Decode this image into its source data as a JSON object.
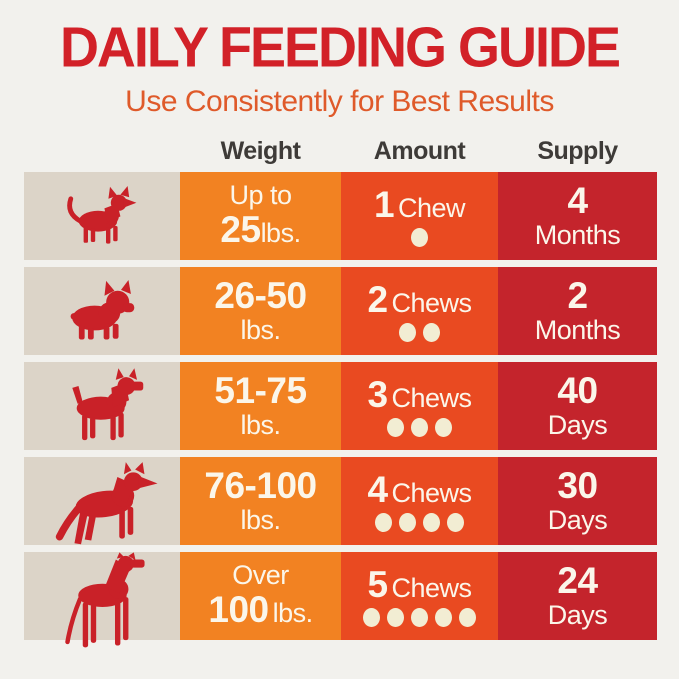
{
  "page": {
    "title": "DAILY FEEDING GUIDE",
    "subtitle": "Use Consistently for Best Results"
  },
  "table": {
    "headers": [
      "Weight",
      "Amount",
      "Supply"
    ],
    "rows": [
      {
        "dog": "chihuahua-icon",
        "weight": {
          "l1_strong": "",
          "l1_normal": "Up to",
          "l2_strong": "25",
          "l2_normal": "lbs."
        },
        "amount": {
          "number": "1",
          "unit": "Chew",
          "count": 1
        },
        "supply": {
          "number": "4",
          "unit": "Months"
        }
      },
      {
        "dog": "french-bulldog-icon",
        "weight": {
          "l1_strong": "26-50",
          "l1_normal": "",
          "l2_strong": "",
          "l2_normal": "lbs."
        },
        "amount": {
          "number": "2",
          "unit": "Chews",
          "count": 2
        },
        "supply": {
          "number": "2",
          "unit": "Months"
        }
      },
      {
        "dog": "boxer-icon",
        "weight": {
          "l1_strong": "51-75",
          "l1_normal": "",
          "l2_strong": "",
          "l2_normal": "lbs."
        },
        "amount": {
          "number": "3",
          "unit": "Chews",
          "count": 3
        },
        "supply": {
          "number": "40",
          "unit": "Days"
        }
      },
      {
        "dog": "german-shepherd-icon",
        "weight": {
          "l1_strong": "76-100",
          "l1_normal": "",
          "l2_strong": "",
          "l2_normal": "lbs."
        },
        "amount": {
          "number": "4",
          "unit": "Chews",
          "count": 4
        },
        "supply": {
          "number": "30",
          "unit": "Days"
        }
      },
      {
        "dog": "great-dane-icon",
        "weight": {
          "l1_strong": "",
          "l1_normal": "Over",
          "l2_strong": "100",
          "l2_normal": "lbs."
        },
        "amount": {
          "number": "5",
          "unit": "Chews",
          "count": 5
        },
        "supply": {
          "number": "24",
          "unit": "Days"
        }
      }
    ]
  },
  "chart_data": {
    "type": "table",
    "title": "DAILY FEEDING GUIDE",
    "subtitle": "Use Consistently for Best Results",
    "columns": [
      "Weight",
      "Amount",
      "Supply"
    ],
    "rows": [
      [
        "Up to 25 lbs.",
        "1 Chew",
        "4 Months"
      ],
      [
        "26-50 lbs.",
        "2 Chews",
        "2 Months"
      ],
      [
        "51-75 lbs.",
        "3 Chews",
        "40 Days"
      ],
      [
        "76-100 lbs.",
        "4 Chews",
        "30 Days"
      ],
      [
        "Over 100 lbs.",
        "5 Chews",
        "24 Days"
      ]
    ],
    "chews_per_day": [
      1,
      2,
      3,
      4,
      5
    ],
    "legend_position": "none",
    "grid": false
  },
  "colors": {
    "bg": "#F2F1ED",
    "title_red": "#D22128",
    "subtitle_orange": "#DF5A2A",
    "header_text": "#3E3B38",
    "col_dog_bg": "#DCD4C8",
    "col_weight": "#F28222",
    "col_amount": "#E94A21",
    "col_supply": "#C4242C",
    "dog_red": "#C92128",
    "cell_text": "#FBF6EA",
    "dot": "#F2EDD3"
  }
}
